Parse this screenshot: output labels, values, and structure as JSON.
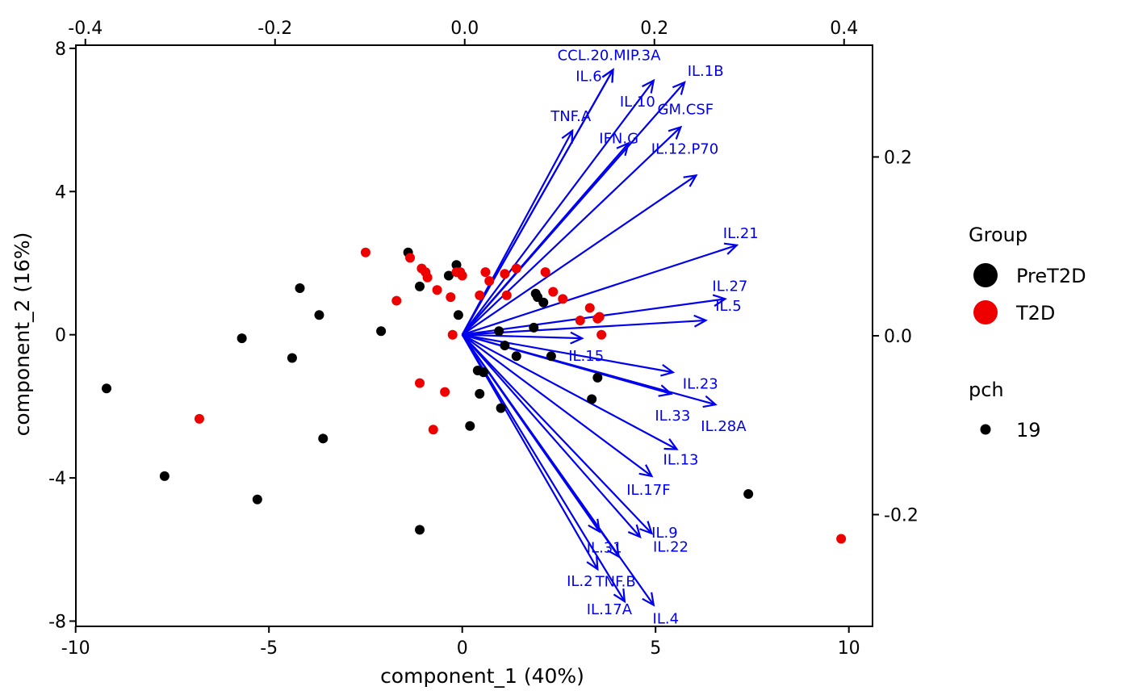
{
  "chart_data": {
    "type": "scatter",
    "subtype": "biplot",
    "xlabel": "component_1   (40%)",
    "ylabel": "component_2   (16%)",
    "xlim": [
      -10.2,
      10.7
    ],
    "ylim": [
      -8.1,
      8.1
    ],
    "x_ticks": [
      "-10",
      "-5",
      "0",
      "5",
      "10"
    ],
    "x_tick_values": [
      -10,
      -5,
      0,
      5,
      10
    ],
    "y_ticks": [
      "-8",
      "-4",
      "0",
      "4",
      "8"
    ],
    "y_tick_values": [
      -8,
      -4,
      0,
      4,
      8
    ],
    "top_lim": [
      -0.41,
      0.43
    ],
    "top_ticks": [
      "-0.4",
      "-0.2",
      "0.0",
      "0.2",
      "0.4"
    ],
    "top_tick_values": [
      -0.4,
      -0.2,
      0.0,
      0.2,
      0.4
    ],
    "right_lim": [
      -0.325,
      0.325
    ],
    "right_ticks": [
      "0.2",
      "0.0",
      "-0.2"
    ],
    "right_tick_values": [
      0.2,
      0.0,
      -0.2
    ],
    "series": [
      {
        "name": "PreT2D",
        "color": "#000000",
        "points": [
          [
            -9.2,
            -1.5
          ],
          [
            -7.7,
            -3.95
          ],
          [
            -5.7,
            -0.1
          ],
          [
            -5.3,
            -4.6
          ],
          [
            -4.4,
            -0.65
          ],
          [
            -4.2,
            1.3
          ],
          [
            -3.7,
            0.55
          ],
          [
            -3.6,
            -2.9
          ],
          [
            -2.1,
            0.1
          ],
          [
            -1.4,
            2.3
          ],
          [
            -1.1,
            1.35
          ],
          [
            -1.1,
            -5.45
          ],
          [
            -0.35,
            1.65
          ],
          [
            -0.15,
            1.95
          ],
          [
            -0.1,
            0.55
          ],
          [
            0.2,
            -2.55
          ],
          [
            0.4,
            -1.0
          ],
          [
            0.45,
            -1.65
          ],
          [
            0.55,
            -1.05
          ],
          [
            0.95,
            0.1
          ],
          [
            1.0,
            -2.05
          ],
          [
            1.1,
            -0.3
          ],
          [
            1.4,
            -0.6
          ],
          [
            1.85,
            0.2
          ],
          [
            1.9,
            1.15
          ],
          [
            1.95,
            1.05
          ],
          [
            2.1,
            0.9
          ],
          [
            2.3,
            -0.6
          ],
          [
            3.35,
            -1.8
          ],
          [
            3.5,
            -1.2
          ],
          [
            7.4,
            -4.45
          ]
        ]
      },
      {
        "name": "T2D",
        "color": "#ee0000",
        "points": [
          [
            -6.8,
            -2.35
          ],
          [
            -2.5,
            2.3
          ],
          [
            -1.7,
            0.95
          ],
          [
            -1.35,
            2.15
          ],
          [
            -1.1,
            -1.35
          ],
          [
            -1.05,
            1.85
          ],
          [
            -0.95,
            1.75
          ],
          [
            -0.9,
            1.6
          ],
          [
            -0.75,
            -2.65
          ],
          [
            -0.65,
            1.25
          ],
          [
            -0.45,
            -1.6
          ],
          [
            -0.3,
            1.05
          ],
          [
            -0.25,
            0.0
          ],
          [
            -0.15,
            1.75
          ],
          [
            -0.05,
            1.75
          ],
          [
            0.0,
            1.65
          ],
          [
            0.45,
            1.1
          ],
          [
            0.6,
            1.75
          ],
          [
            0.7,
            1.5
          ],
          [
            1.1,
            1.7
          ],
          [
            1.15,
            1.1
          ],
          [
            1.4,
            1.85
          ],
          [
            2.15,
            1.75
          ],
          [
            2.35,
            1.2
          ],
          [
            2.6,
            1.0
          ],
          [
            3.05,
            0.4
          ],
          [
            3.3,
            0.75
          ],
          [
            3.5,
            0.45
          ],
          [
            3.55,
            0.5
          ],
          [
            3.6,
            0.0
          ],
          [
            9.8,
            -5.7
          ]
        ]
      }
    ],
    "vectors": [
      {
        "name": "CCL.20.MIP.3A",
        "x": 3.9,
        "y": 7.4
      },
      {
        "name": "IL.6",
        "x": 3.9,
        "y": 7.4
      },
      {
        "name": "IL.1B",
        "x": 5.75,
        "y": 7.05
      },
      {
        "name": "IL.10",
        "x": 4.95,
        "y": 7.1
      },
      {
        "name": "TNF.A",
        "x": 2.85,
        "y": 5.7
      },
      {
        "name": "GM.CSF",
        "x": 5.65,
        "y": 5.8
      },
      {
        "name": "IFN.G",
        "x": 4.3,
        "y": 5.35
      },
      {
        "name": "IL.12.P70",
        "x": 6.05,
        "y": 4.45
      },
      {
        "name": "IL.21",
        "x": 7.1,
        "y": 2.5
      },
      {
        "name": "IL.27",
        "x": 6.8,
        "y": 1.0
      },
      {
        "name": "IL.5",
        "x": 6.3,
        "y": 0.4
      },
      {
        "name": "IL.15",
        "x": 3.1,
        "y": -0.1
      },
      {
        "name": "IL.23",
        "x": 5.45,
        "y": -1.05
      },
      {
        "name": "IL.33",
        "x": 5.4,
        "y": -1.65
      },
      {
        "name": "IL.28A",
        "x": 6.55,
        "y": -1.95
      },
      {
        "name": "IL.13",
        "x": 5.55,
        "y": -3.2
      },
      {
        "name": "IL.17F",
        "x": 4.9,
        "y": -3.95
      },
      {
        "name": "IL.9",
        "x": 4.9,
        "y": -5.55
      },
      {
        "name": "IL.22",
        "x": 4.6,
        "y": -5.65
      },
      {
        "name": "IL.31",
        "x": 3.55,
        "y": -5.5
      },
      {
        "name": "TNF.B",
        "x": 4.05,
        "y": -6.2
      },
      {
        "name": "IL.2",
        "x": 3.5,
        "y": -6.55
      },
      {
        "name": "IL.17A",
        "x": 4.2,
        "y": -7.45
      },
      {
        "name": "IL.4",
        "x": 4.95,
        "y": -7.55
      }
    ],
    "vector_color": "#0000ee",
    "legend_placement": "right",
    "legend": {
      "group_title": "Group",
      "groups": [
        {
          "label": "PreT2D",
          "color": "#000000"
        },
        {
          "label": "T2D",
          "color": "#ee0000"
        }
      ],
      "pch_title": "pch",
      "pch_label": "19"
    }
  }
}
